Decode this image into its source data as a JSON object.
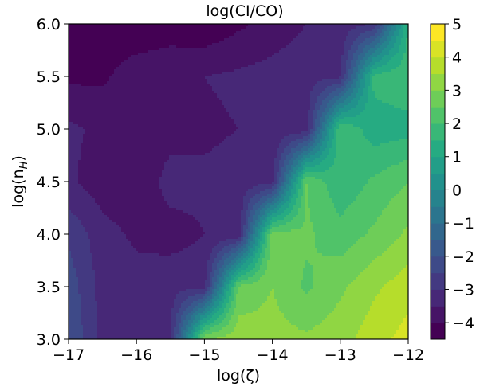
{
  "chart_data": {
    "type": "heatmap",
    "subtype": "filled-contour",
    "title": "log(CI/CO)",
    "xlabel": "log(ζ)",
    "ylabel_base": "log(n",
    "ylabel_sub": "H",
    "ylabel_end": ")",
    "xlim": [
      -17,
      -12
    ],
    "ylim": [
      3.0,
      6.0
    ],
    "xticks": [
      -17,
      -16,
      -15,
      -14,
      -13,
      -12
    ],
    "xtick_labels": [
      "−17",
      "−16",
      "−15",
      "−14",
      "−13",
      "−12"
    ],
    "yticks": [
      3.0,
      3.5,
      4.0,
      4.5,
      5.0,
      5.5,
      6.0
    ],
    "ytick_labels": [
      "3.0",
      "3.5",
      "4.0",
      "4.5",
      "5.0",
      "5.5",
      "6.0"
    ],
    "colormap": "viridis",
    "colorbar": {
      "vmin": -4.5,
      "vmax": 5,
      "levels": [
        -4.5,
        -4,
        -3.5,
        -3,
        -2.5,
        -2,
        -1.5,
        -1,
        -0.5,
        0,
        0.5,
        1,
        1.5,
        2,
        2.5,
        3,
        3.5,
        4,
        4.5,
        5
      ],
      "ticks": [
        -4,
        -3,
        -2,
        -1,
        0,
        1,
        2,
        3,
        4,
        5
      ],
      "tick_labels": [
        "−4",
        "−3",
        "−2",
        "−1",
        "0",
        "1",
        "2",
        "3",
        "4",
        "5"
      ]
    },
    "grid_x": [
      -17,
      -16.5,
      -16,
      -15.5,
      -15,
      -14.5,
      -14,
      -13.5,
      -13,
      -12.5,
      -12
    ],
    "grid_y": [
      3.0,
      3.5,
      4.0,
      4.5,
      5.0,
      5.5,
      6.0
    ],
    "z": [
      [
        -2.0,
        -3.2,
        -3.2,
        -3.1,
        3.0,
        3.3,
        3.2,
        3.1,
        3.3,
        3.8,
        4.2
      ],
      [
        -2.2,
        -3.2,
        -3.3,
        -3.2,
        -3.2,
        2.6,
        3.0,
        2.4,
        2.9,
        3.4,
        3.8
      ],
      [
        -2.6,
        -3.3,
        -3.6,
        -3.7,
        -3.5,
        -3.4,
        2.8,
        2.6,
        2.2,
        2.6,
        3.1
      ],
      [
        -3.4,
        -3.8,
        -3.9,
        -3.3,
        -3.4,
        -3.3,
        -3.2,
        2.5,
        1.6,
        2.1,
        2.5
      ],
      [
        -3.4,
        -3.6,
        -3.8,
        -3.7,
        -3.6,
        -3.5,
        -3.4,
        -3.3,
        2.0,
        1.2,
        1.3
      ],
      [
        -4.1,
        -4.1,
        -3.7,
        -3.6,
        -3.5,
        -3.4,
        -3.3,
        -3.2,
        -3.1,
        1.7,
        1.9
      ],
      [
        -4.2,
        -4.3,
        -4.4,
        -4.3,
        -4.4,
        -4.1,
        -3.8,
        -3.5,
        -3.3,
        -3.0,
        1.5
      ]
    ]
  }
}
